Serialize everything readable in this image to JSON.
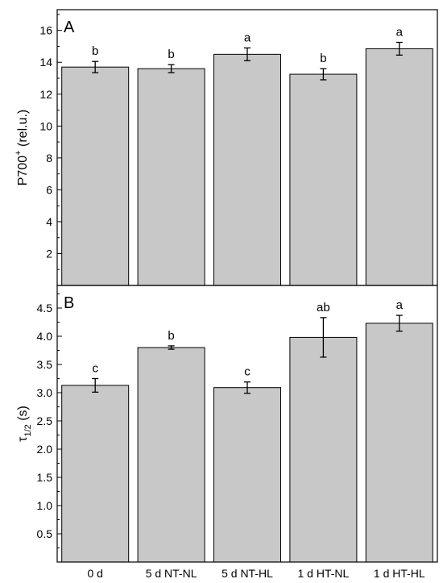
{
  "chart_data": [
    {
      "panel": "A",
      "type": "bar",
      "categories": [
        "0  d",
        "5 d NT-NL",
        "5 d NT-HL",
        "1 d HT-NL",
        "1 d HT-HL"
      ],
      "values": [
        13.7,
        13.6,
        14.5,
        13.25,
        14.85
      ],
      "errors": [
        0.35,
        0.25,
        0.4,
        0.35,
        0.4
      ],
      "significance": [
        "b",
        "b",
        "a",
        "b",
        "a"
      ],
      "ylabel_main": "P700",
      "ylabel_sup": "+",
      "ylabel_unit": " (rel.u.)",
      "yticks": [
        2,
        4,
        6,
        8,
        10,
        12,
        14,
        16
      ],
      "ytick_labels": [
        "2",
        "4",
        "6",
        "8",
        "10",
        "12",
        "14",
        "16"
      ],
      "ylim": [
        0,
        17.3
      ],
      "grid": false
    },
    {
      "panel": "B",
      "type": "bar",
      "categories": [
        "0  d",
        "5 d NT-NL",
        "5 d NT-HL",
        "1 d HT-NL",
        "1 d HT-HL"
      ],
      "values": [
        3.13,
        3.8,
        3.09,
        3.98,
        4.23
      ],
      "errors": [
        0.12,
        0.03,
        0.1,
        0.35,
        0.14
      ],
      "significance": [
        "c",
        "b",
        "c",
        "ab",
        "a"
      ],
      "ylabel_main": "τ",
      "ylabel_sub": "1/2",
      "ylabel_unit": " (s)",
      "yticks": [
        0.5,
        1.0,
        1.5,
        2.0,
        2.5,
        3.0,
        3.5,
        4.0,
        4.5
      ],
      "ytick_labels": [
        "0.5",
        "1.0",
        "1.5",
        "2.0",
        "2.5",
        "3.0",
        "3.5",
        "4.0",
        "4.5"
      ],
      "ylim": [
        0,
        4.9
      ],
      "grid": false
    }
  ]
}
